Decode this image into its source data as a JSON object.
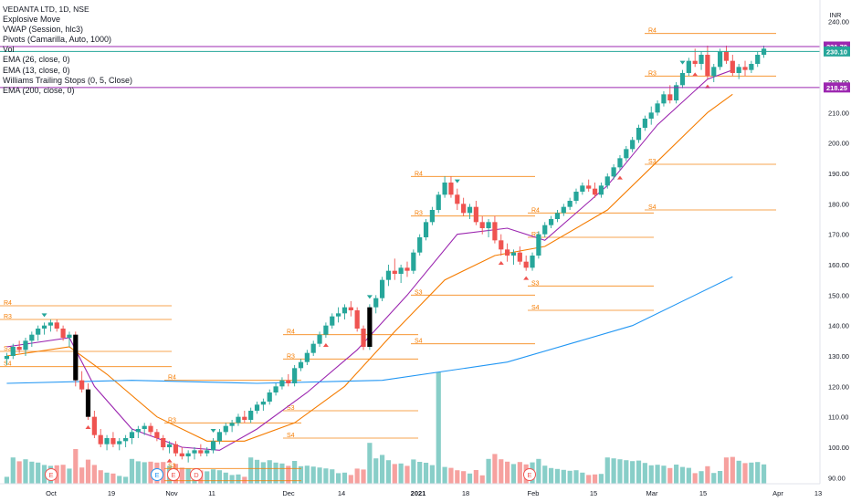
{
  "legend": {
    "title": "VEDANTA LTD, 1D, NSE",
    "items": [
      "Explosive Move",
      "VWAP (Session, hlc3)",
      "Pivots (Camarilla, Auto, 1000)",
      "Vol",
      "EMA (26, close, 0)",
      "EMA (13, close, 0)",
      "Williams Trailing Stops (0, 5, Close)",
      "EMA (200, close, 0)"
    ]
  },
  "chart_data": {
    "type": "candlestick",
    "currency": "INR",
    "yaxis_ticks": [
      240,
      230,
      220,
      210,
      200,
      190,
      180,
      170,
      160,
      150,
      140,
      130,
      120,
      110,
      100,
      90
    ],
    "ylim": [
      88,
      244
    ],
    "xaxis_labels": [
      "Oct",
      "19",
      "Nov",
      "11",
      "Dec",
      "14",
      "2021",
      "18",
      "Feb",
      "15",
      "Mar",
      "15",
      "Apr",
      "13"
    ],
    "price_tags": [
      {
        "value": 231.7,
        "label": "231.70",
        "color": "#9c27b0"
      },
      {
        "value": 230.1,
        "label": "230.10",
        "color": "#26a69a"
      },
      {
        "value": 218.25,
        "label": "218.25",
        "color": "#9c27b0"
      }
    ],
    "horizontal_lines": [
      {
        "value": 231.7,
        "color": "#9c27b0"
      },
      {
        "value": 230.1,
        "color": "#26a69a"
      },
      {
        "value": 218.25,
        "color": "#9c27b0"
      }
    ],
    "candles": [
      [
        129,
        131,
        127,
        130
      ],
      [
        130,
        134,
        129,
        133
      ],
      [
        133,
        135,
        131,
        132
      ],
      [
        132,
        136,
        130,
        135
      ],
      [
        135,
        138,
        133,
        137
      ],
      [
        137,
        140,
        135,
        139
      ],
      [
        139,
        141,
        137,
        140
      ],
      [
        140,
        142,
        138,
        141
      ],
      [
        141,
        142,
        138,
        139
      ],
      [
        139,
        140,
        135,
        136
      ],
      [
        136,
        138,
        133,
        137
      ],
      [
        137,
        138,
        120,
        122
      ],
      [
        122,
        125,
        118,
        119
      ],
      [
        119,
        121,
        109,
        110
      ],
      [
        110,
        112,
        103,
        104
      ],
      [
        104,
        106,
        100,
        101
      ],
      [
        101,
        104,
        99,
        103
      ],
      [
        103,
        105,
        100,
        101
      ],
      [
        101,
        103,
        99,
        102
      ],
      [
        102,
        104,
        100,
        103
      ],
      [
        103,
        106,
        101,
        105
      ],
      [
        105,
        107,
        103,
        106
      ],
      [
        106,
        108,
        104,
        107
      ],
      [
        107,
        108,
        104,
        105
      ],
      [
        105,
        106,
        102,
        103
      ],
      [
        103,
        104,
        99,
        100
      ],
      [
        100,
        102,
        98,
        101
      ],
      [
        101,
        102,
        97,
        98
      ],
      [
        98,
        100,
        96,
        97
      ],
      [
        97,
        99,
        95,
        98
      ],
      [
        98,
        100,
        96,
        99
      ],
      [
        99,
        101,
        97,
        98
      ],
      [
        98,
        100,
        97,
        99
      ],
      [
        99,
        103,
        98,
        102
      ],
      [
        102,
        106,
        101,
        105
      ],
      [
        105,
        108,
        104,
        107
      ],
      [
        107,
        109,
        105,
        108
      ],
      [
        108,
        111,
        107,
        110
      ],
      [
        110,
        112,
        108,
        109
      ],
      [
        109,
        113,
        108,
        112
      ],
      [
        112,
        115,
        111,
        114
      ],
      [
        114,
        116,
        112,
        115
      ],
      [
        115,
        119,
        114,
        118
      ],
      [
        118,
        121,
        117,
        120
      ],
      [
        120,
        123,
        119,
        122
      ],
      [
        122,
        124,
        120,
        121
      ],
      [
        121,
        127,
        120,
        126
      ],
      [
        126,
        129,
        125,
        128
      ],
      [
        128,
        132,
        127,
        131
      ],
      [
        131,
        135,
        130,
        134
      ],
      [
        134,
        138,
        133,
        137
      ],
      [
        137,
        141,
        136,
        140
      ],
      [
        140,
        144,
        139,
        143
      ],
      [
        143,
        146,
        141,
        144
      ],
      [
        144,
        147,
        142,
        146
      ],
      [
        146,
        148,
        143,
        145
      ],
      [
        145,
        146,
        138,
        139
      ],
      [
        139,
        140,
        132,
        133
      ],
      [
        133,
        147,
        132,
        146
      ],
      [
        146,
        150,
        144,
        149
      ],
      [
        149,
        156,
        148,
        155
      ],
      [
        155,
        160,
        153,
        158
      ],
      [
        158,
        162,
        155,
        157
      ],
      [
        157,
        160,
        154,
        159
      ],
      [
        159,
        161,
        156,
        158
      ],
      [
        158,
        165,
        157,
        164
      ],
      [
        164,
        170,
        163,
        169
      ],
      [
        169,
        175,
        168,
        174
      ],
      [
        174,
        179,
        173,
        178
      ],
      [
        178,
        184,
        177,
        183
      ],
      [
        183,
        189,
        182,
        187
      ],
      [
        187,
        189,
        182,
        183
      ],
      [
        183,
        185,
        178,
        180
      ],
      [
        180,
        182,
        176,
        177
      ],
      [
        177,
        180,
        175,
        179
      ],
      [
        179,
        181,
        173,
        174
      ],
      [
        174,
        176,
        170,
        172
      ],
      [
        172,
        175,
        169,
        174
      ],
      [
        174,
        176,
        167,
        168
      ],
      [
        168,
        170,
        163,
        165
      ],
      [
        165,
        167,
        161,
        163
      ],
      [
        163,
        165,
        160,
        164
      ],
      [
        164,
        166,
        160,
        161
      ],
      [
        161,
        163,
        158,
        159
      ],
      [
        159,
        164,
        158,
        163
      ],
      [
        163,
        171,
        162,
        170
      ],
      [
        170,
        174,
        169,
        173
      ],
      [
        173,
        176,
        172,
        175
      ],
      [
        175,
        178,
        174,
        177
      ],
      [
        177,
        180,
        176,
        179
      ],
      [
        179,
        182,
        178,
        181
      ],
      [
        181,
        185,
        180,
        184
      ],
      [
        184,
        187,
        183,
        186
      ],
      [
        186,
        188,
        184,
        185
      ],
      [
        185,
        187,
        182,
        183
      ],
      [
        183,
        187,
        182,
        186
      ],
      [
        186,
        190,
        185,
        189
      ],
      [
        189,
        193,
        188,
        192
      ],
      [
        192,
        196,
        191,
        195
      ],
      [
        195,
        199,
        194,
        198
      ],
      [
        198,
        202,
        197,
        201
      ],
      [
        201,
        206,
        200,
        205
      ],
      [
        205,
        209,
        204,
        208
      ],
      [
        208,
        212,
        206,
        210
      ],
      [
        210,
        214,
        209,
        213
      ],
      [
        213,
        217,
        212,
        216
      ],
      [
        216,
        219,
        213,
        214
      ],
      [
        214,
        220,
        213,
        219
      ],
      [
        219,
        224,
        218,
        223
      ],
      [
        223,
        228,
        222,
        227
      ],
      [
        227,
        231,
        225,
        226
      ],
      [
        226,
        230,
        224,
        229
      ],
      [
        229,
        232,
        221,
        222
      ],
      [
        222,
        226,
        220,
        225
      ],
      [
        225,
        231,
        224,
        230
      ],
      [
        230,
        232,
        226,
        227
      ],
      [
        227,
        229,
        222,
        223
      ],
      [
        223,
        226,
        221,
        225
      ],
      [
        225,
        227,
        222,
        224
      ],
      [
        224,
        227,
        223,
        226
      ],
      [
        226,
        230,
        225,
        229
      ],
      [
        229,
        232,
        228,
        231
      ]
    ],
    "lines": [
      {
        "name": "EMA (13, close, 0)",
        "color": "#9c27b0",
        "points": [
          [
            0,
            133
          ],
          [
            10,
            136
          ],
          [
            14,
            120
          ],
          [
            20,
            106
          ],
          [
            28,
            100
          ],
          [
            34,
            99
          ],
          [
            40,
            106
          ],
          [
            48,
            118
          ],
          [
            56,
            132
          ],
          [
            64,
            150
          ],
          [
            72,
            170
          ],
          [
            80,
            172
          ],
          [
            86,
            168
          ],
          [
            96,
            186
          ],
          [
            104,
            206
          ],
          [
            112,
            221
          ],
          [
            116,
            224
          ]
        ]
      },
      {
        "name": "EMA (26, close, 0)",
        "color": "#f57c00",
        "points": [
          [
            0,
            130
          ],
          [
            10,
            133
          ],
          [
            16,
            124
          ],
          [
            24,
            110
          ],
          [
            32,
            102
          ],
          [
            38,
            102
          ],
          [
            46,
            108
          ],
          [
            54,
            120
          ],
          [
            62,
            138
          ],
          [
            70,
            155
          ],
          [
            78,
            163
          ],
          [
            86,
            166
          ],
          [
            96,
            178
          ],
          [
            104,
            194
          ],
          [
            112,
            210
          ],
          [
            116,
            216
          ]
        ]
      },
      {
        "name": "EMA (200, close, 0)",
        "color": "#2196f3",
        "points": [
          [
            0,
            121
          ],
          [
            20,
            122
          ],
          [
            40,
            121
          ],
          [
            60,
            122
          ],
          [
            80,
            128
          ],
          [
            100,
            140
          ],
          [
            116,
            156
          ]
        ]
      }
    ],
    "pivot_labels": [
      "R4",
      "R3",
      "S3",
      "S4"
    ],
    "event_markers": [
      "E",
      "E",
      "D",
      "E",
      "E"
    ]
  }
}
